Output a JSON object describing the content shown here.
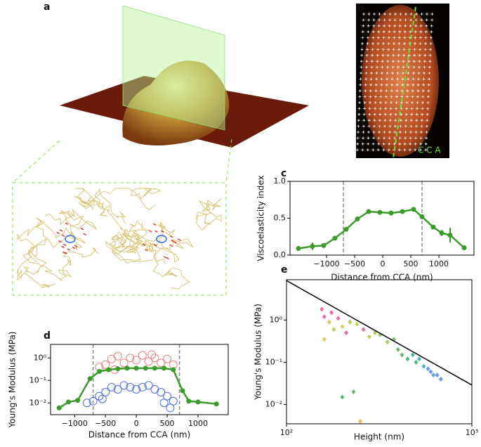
{
  "figure": {
    "panel_a": "a",
    "panel_b": "b",
    "cca_label": "C C A"
  },
  "chart_data": [
    {
      "type": "line",
      "panel": "c",
      "xlabel": "Distance from CCA (nm)",
      "ylabel": "Viscoelasticity index",
      "xlim": [
        -1650,
        1625
      ],
      "ylim": [
        0,
        1
      ],
      "xticks": [
        {
          "value": -1000,
          "label": "−1000"
        },
        {
          "value": -500,
          "label": "−500"
        },
        0,
        500,
        1000
      ],
      "yticks": [
        {
          "value": 0,
          "label": "0.0"
        },
        {
          "value": 0.5,
          "label": "0.5"
        },
        {
          "value": 1,
          "label": "1.0"
        }
      ],
      "vlines": [
        -700,
        700
      ],
      "series": [
        {
          "color": "#3a9a2a",
          "marker": "line",
          "x": [
            -1500,
            -1250,
            -1050,
            -850,
            -650,
            -450,
            -250,
            -50,
            150,
            350,
            550,
            700,
            900,
            1050,
            1200,
            1450
          ],
          "values": [
            0.09,
            0.12,
            0.13,
            0.23,
            0.35,
            0.49,
            0.59,
            0.58,
            0.57,
            0.59,
            0.62,
            0.52,
            0.38,
            0.3,
            0.27,
            0.1
          ],
          "errors": [
            0.02,
            0.05,
            0.02,
            0.02,
            0.02,
            0.02,
            0.02,
            0.02,
            0.02,
            0.02,
            0.02,
            0.02,
            0.03,
            0.04,
            0.1,
            0.02
          ]
        }
      ]
    },
    {
      "type": "line",
      "panel": "d",
      "xlabel": "Distance from CCA (nm)",
      "ylabel": "Young's Modulus (MPa)",
      "ylog": true,
      "xlim": [
        -1390,
        1490
      ],
      "ylim": [
        0.003,
        4
      ],
      "xticks": [
        {
          "value": -1000,
          "label": "−1000"
        },
        {
          "value": -500,
          "label": "−500"
        },
        0,
        500,
        1000
      ],
      "yticks": [
        {
          "value": 0.01,
          "label": "10⁻²"
        },
        {
          "value": 0.1,
          "label": "10⁻¹"
        },
        {
          "value": 1,
          "label": "10⁰"
        }
      ],
      "vlines": [
        -700,
        700
      ],
      "series": [
        {
          "color": "#e88080",
          "marker": "circle-open",
          "x": [
            -500,
            -400,
            -300,
            -200,
            -100,
            0,
            100,
            200,
            300,
            400,
            500,
            -600,
            600,
            -350,
            250
          ],
          "values": [
            0.5,
            0.9,
            1.2,
            0.6,
            1.0,
            0.8,
            1.3,
            0.7,
            1.0,
            0.6,
            0.9,
            0.4,
            0.5,
            0.3,
            1.4
          ]
        },
        {
          "color": "#4a6ee0",
          "marker": "circle-open",
          "x": [
            -800,
            -700,
            -600,
            -500,
            -400,
            -300,
            -200,
            -100,
            0,
            100,
            200,
            300,
            400,
            500,
            600,
            -550,
            450,
            550
          ],
          "values": [
            0.01,
            0.012,
            0.02,
            0.03,
            0.05,
            0.04,
            0.06,
            0.05,
            0.04,
            0.05,
            0.06,
            0.04,
            0.03,
            0.02,
            0.012,
            0.015,
            0.01,
            0.006
          ]
        },
        {
          "color": "#3a9a2a",
          "marker": "line",
          "x": [
            -1250,
            -1100,
            -950,
            -750,
            -600,
            -450,
            -300,
            -150,
            0,
            150,
            300,
            450,
            600,
            750,
            850,
            1000,
            1300
          ],
          "values": [
            0.006,
            0.011,
            0.013,
            0.12,
            0.25,
            0.3,
            0.33,
            0.35,
            0.35,
            0.35,
            0.35,
            0.35,
            0.3,
            0.035,
            0.012,
            0.011,
            0.009
          ]
        }
      ]
    },
    {
      "type": "scatter",
      "panel": "e",
      "xlabel": "Height (nm)",
      "ylabel": "Young's Modulus (MPa)",
      "xlog": true,
      "ylog": true,
      "xlim": [
        100,
        1000
      ],
      "ylim": [
        0.0035,
        9
      ],
      "xticks": [
        {
          "value": 100,
          "label": "10²"
        },
        {
          "value": 1000,
          "label": "10³"
        }
      ],
      "yticks": [
        {
          "value": 0.01,
          "label": "10⁻²"
        },
        {
          "value": 0.1,
          "label": "10⁻¹"
        },
        {
          "value": 1,
          "label": "10⁰"
        }
      ],
      "series": [
        {
          "marker": "diamond",
          "x": [
            155,
            160,
            170,
            175,
            180,
            190,
            200,
            210,
            220,
            240,
            260,
            280,
            300,
            320,
            350,
            380,
            400,
            420,
            450,
            480,
            500,
            520,
            550,
            580,
            600,
            620,
            650,
            680,
            160,
            230,
            200,
            250
          ],
          "values": [
            1.8,
            1.2,
            0.9,
            1.5,
            0.6,
            1.1,
            0.7,
            0.5,
            0.9,
            0.8,
            0.6,
            0.4,
            0.5,
            0.45,
            0.3,
            0.35,
            0.2,
            0.15,
            0.12,
            0.15,
            0.1,
            0.12,
            0.08,
            0.07,
            0.06,
            0.05,
            0.05,
            0.04,
            0.35,
            0.02,
            0.015,
            0.004
          ],
          "colors": [
            "#e0559a",
            "#e0559a",
            "#d8c040",
            "#e0559a",
            "#a8c83a",
            "#e0559a",
            "#c8cc40",
            "#e0559a",
            "#a8c83a",
            "#b8cc3a",
            "#e0559a",
            "#a8c83a",
            "#9cc63c",
            "#88c040",
            "#9cc63c",
            "#6cbc48",
            "#4cb060",
            "#3fae5a",
            "#3aa870",
            "#2aa6a6",
            "#3aa870",
            "#2aa6a6",
            "#3a98c8",
            "#4a8be0",
            "#4a8be0",
            "#4a8be0",
            "#4a8be0",
            "#4a8be0",
            "#d8c040",
            "#3fae5a",
            "#3fae5a",
            "#e8b040"
          ]
        },
        {
          "marker": "line",
          "color": "#000000",
          "x": [
            100,
            1000
          ],
          "values": [
            8.6,
            0.029
          ]
        }
      ]
    }
  ]
}
